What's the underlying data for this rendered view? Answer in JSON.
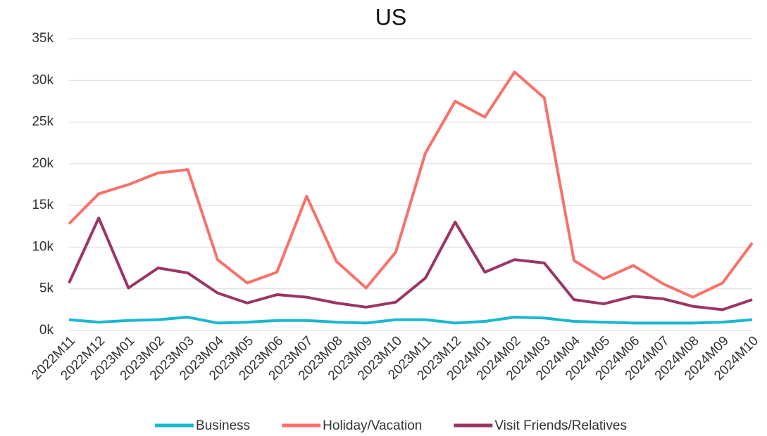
{
  "chart_data": {
    "type": "line",
    "title": "US",
    "categories": [
      "2022M11",
      "2022M12",
      "2023M01",
      "2023M02",
      "2023M03",
      "2023M04",
      "2023M05",
      "2023M06",
      "2023M07",
      "2023M08",
      "2023M09",
      "2023M10",
      "2023M11",
      "2023M12",
      "2024M01",
      "2024M02",
      "2024M03",
      "2024M04",
      "2024M05",
      "2024M06",
      "2024M07",
      "2024M08",
      "2024M09",
      "2024M10"
    ],
    "series": [
      {
        "name": "Business",
        "color": "#1ab8cf",
        "values": [
          1300,
          1000,
          1200,
          1300,
          1600,
          900,
          1000,
          1200,
          1200,
          1000,
          900,
          1300,
          1300,
          900,
          1100,
          1600,
          1500,
          1100,
          1000,
          900,
          900,
          900,
          1000,
          1300
        ]
      },
      {
        "name": "Holiday/Vacation",
        "color": "#f8716a",
        "values": [
          12800,
          16400,
          17500,
          18900,
          19300,
          8500,
          5700,
          7000,
          16100,
          8300,
          5100,
          9400,
          21300,
          27500,
          25600,
          31000,
          27900,
          8400,
          6200,
          7800,
          5600,
          4000,
          5700,
          10500
        ]
      },
      {
        "name": "Visit Friends/Relatives",
        "color": "#9b3565",
        "values": [
          5700,
          13500,
          5100,
          7500,
          6900,
          4500,
          3300,
          4300,
          4000,
          3300,
          2800,
          3400,
          6300,
          13000,
          7000,
          8500,
          8100,
          3700,
          3200,
          4100,
          3800,
          2900,
          2500,
          3700
        ]
      }
    ],
    "ylim": [
      0,
      35000
    ],
    "yticks": [
      {
        "value": 0,
        "label": "0k"
      },
      {
        "value": 5000,
        "label": "5k"
      },
      {
        "value": 10000,
        "label": "10k"
      },
      {
        "value": 15000,
        "label": "15k"
      },
      {
        "value": 20000,
        "label": "20k"
      },
      {
        "value": 25000,
        "label": "25k"
      },
      {
        "value": 30000,
        "label": "30k"
      },
      {
        "value": 35000,
        "label": "35k"
      }
    ],
    "grid": true,
    "legend": "bottom"
  }
}
